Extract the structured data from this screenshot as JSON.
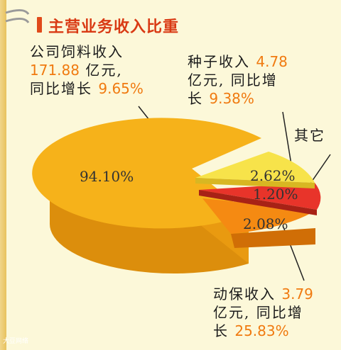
{
  "title": "主营业务收入比重",
  "chart_data": {
    "type": "pie",
    "title": "主营业务收入比重",
    "slices": [
      {
        "name": "公司饲料收入",
        "value": 94.1,
        "label": "94.10%",
        "color": "#f6b21a"
      },
      {
        "name": "种子收入",
        "value": 2.62,
        "label": "2.62%",
        "color": "#f7e34a"
      },
      {
        "name": "其它",
        "value": 1.2,
        "label": "1.20%",
        "color": "#e8342a"
      },
      {
        "name": "动保收入",
        "value": 2.08,
        "label": "2.08%",
        "color": "#f58a12"
      }
    ]
  },
  "annotations": {
    "feed": {
      "l1": "公司饲料收入",
      "amount": "171.88",
      "l2_suffix": "亿元,",
      "l3_prefix": "同比增长",
      "growth": "9.65%"
    },
    "seed": {
      "l1_prefix": "种子收入",
      "amount": "4.78",
      "l2": "亿元, 同比增",
      "l3_prefix": "长",
      "growth": "9.38%"
    },
    "other": {
      "label": "其它"
    },
    "vet": {
      "l1_prefix": "动保收入",
      "amount": "3.79",
      "l2": "亿元, 同比增",
      "l3_prefix": "长",
      "growth": "25.83%"
    }
  },
  "watermark": "大豆网络"
}
